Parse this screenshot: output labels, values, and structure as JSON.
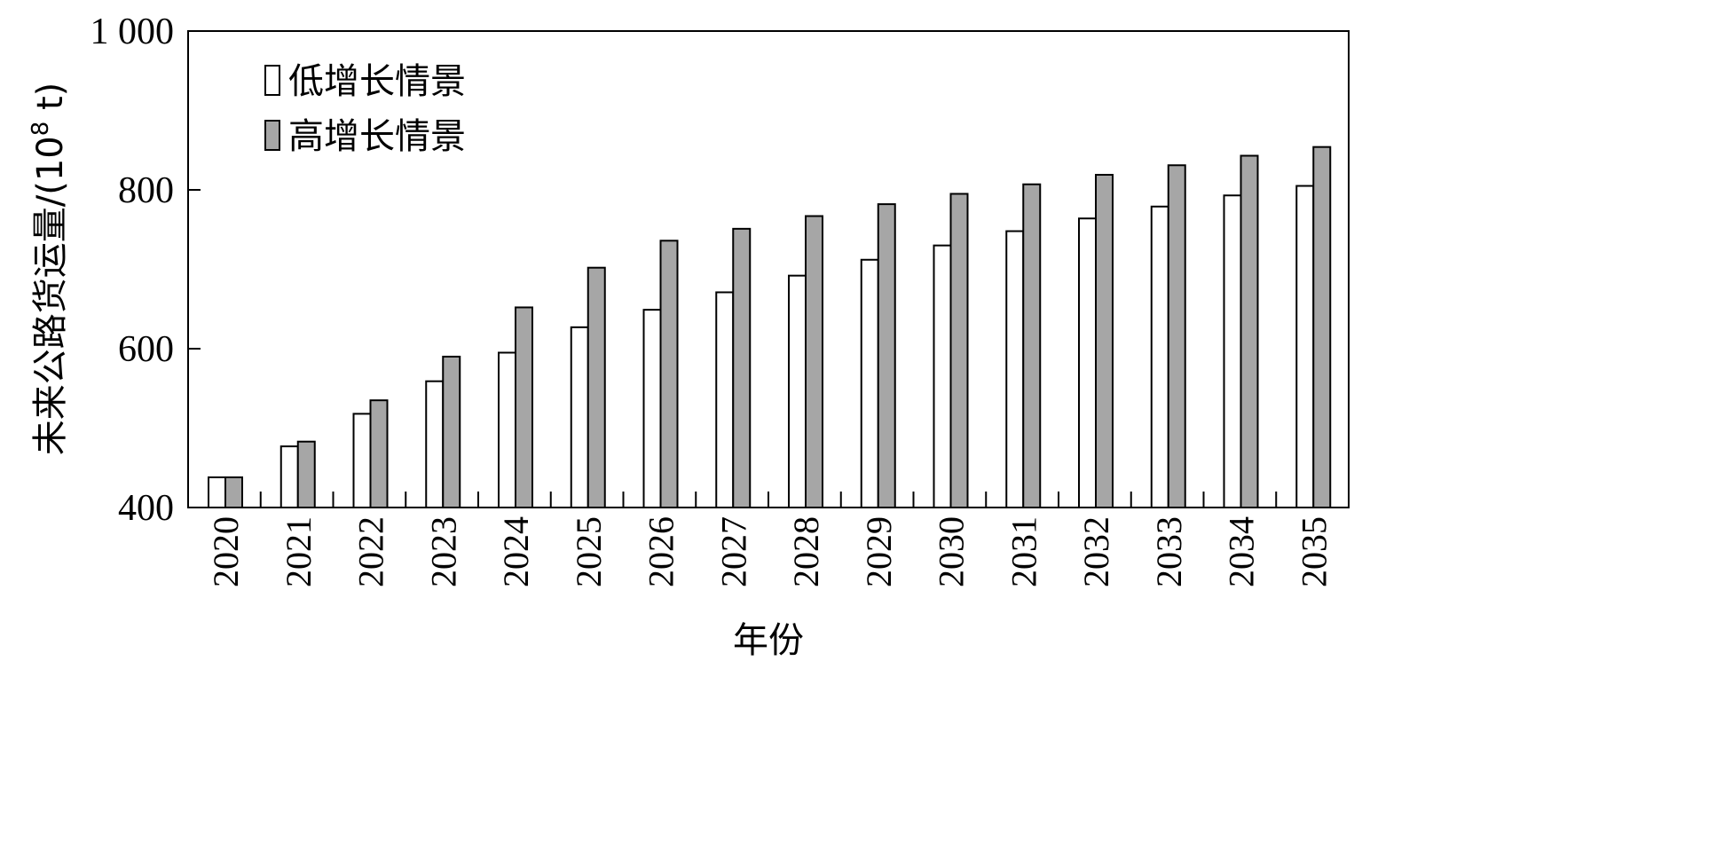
{
  "chart_data": {
    "type": "bar",
    "categories": [
      "2020",
      "2021",
      "2022",
      "2023",
      "2024",
      "2025",
      "2026",
      "2027",
      "2028",
      "2029",
      "2030",
      "2031",
      "2032",
      "2033",
      "2034",
      "2035"
    ],
    "series": [
      {
        "name": "低增长情景",
        "color": "#ffffff",
        "values": [
          438,
          477,
          518,
          559,
          595,
          627,
          649,
          671,
          692,
          712,
          730,
          748,
          764,
          779,
          793,
          805
        ]
      },
      {
        "name": "高增长情景",
        "color": "#a6a6a6",
        "values": [
          438,
          483,
          535,
          590,
          652,
          702,
          736,
          751,
          767,
          782,
          795,
          807,
          819,
          831,
          843,
          854
        ]
      }
    ],
    "ylabel_main": "未来公路货运量/(10",
    "ylabel_exp": "8",
    "ylabel_unit": " t)",
    "xlabel": "年份",
    "ylim": [
      400,
      1000
    ],
    "yticks": [
      400,
      600,
      800,
      1000
    ],
    "ytick_labels": [
      "400",
      "600",
      "800",
      "1 000"
    ],
    "legend_position": "top-left",
    "grid": false
  }
}
